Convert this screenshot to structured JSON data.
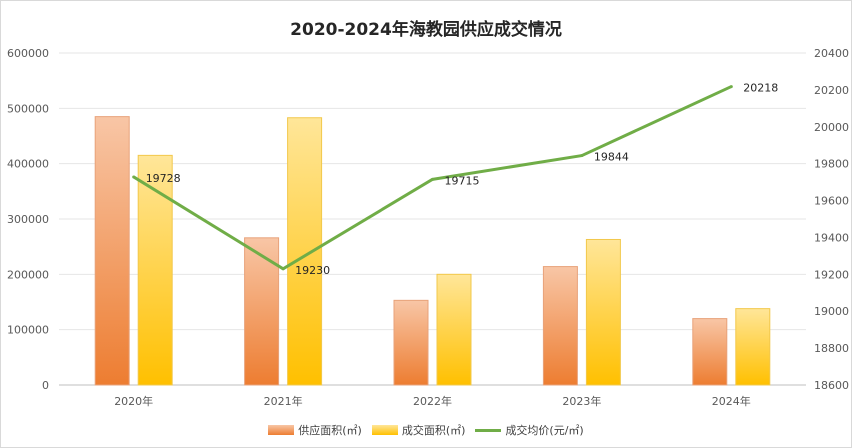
{
  "chart_data": {
    "type": "bar",
    "title": "2020-2024年海教园供应成交情况",
    "categories": [
      "2020年",
      "2021年",
      "2022年",
      "2023年",
      "2024年"
    ],
    "series": [
      {
        "name": "供应面积(㎡)",
        "type": "bar",
        "axis": "left",
        "values": [
          485000,
          266000,
          153000,
          214000,
          120000
        ],
        "colors": [
          "#f8c6a6",
          "#ed7d31"
        ]
      },
      {
        "name": "成交面积(㎡)",
        "type": "bar",
        "axis": "left",
        "values": [
          415000,
          483000,
          200000,
          263000,
          138000
        ],
        "colors": [
          "#ffe699",
          "#ffc000"
        ]
      },
      {
        "name": "成交均价(元/㎡)",
        "type": "line",
        "axis": "right",
        "values": [
          19728,
          19230,
          19715,
          19844,
          20218
        ],
        "color": "#70ad47"
      }
    ],
    "y_left": {
      "min": 0,
      "max": 600000,
      "ticks": [
        "0",
        "100000",
        "200000",
        "300000",
        "400000",
        "500000",
        "600000"
      ]
    },
    "y_right": {
      "min": 18600,
      "max": 20400,
      "ticks": [
        "18600",
        "18800",
        "19000",
        "19200",
        "19400",
        "19600",
        "19800",
        "20000",
        "20200",
        "20400"
      ]
    },
    "line_labels": [
      "19728",
      "19230",
      "19715",
      "19844",
      "20218"
    ],
    "grid": true,
    "legend_position": "bottom"
  }
}
